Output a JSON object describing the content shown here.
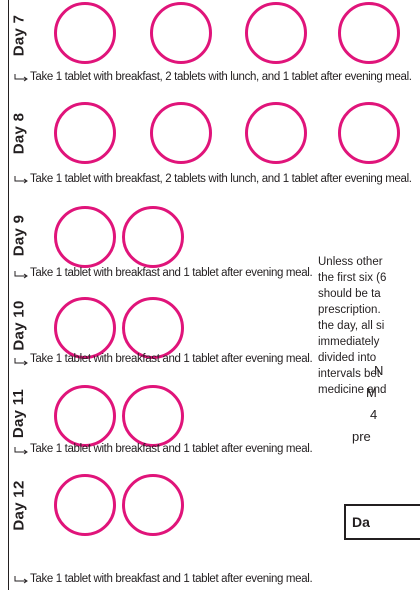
{
  "days": [
    {
      "label": "Day 7",
      "tablets": 4,
      "instruction": "Take 1 tablet with breakfast, 2 tablets with lunch, and 1 tablet after evening meal."
    },
    {
      "label": "Day 8",
      "tablets": 4,
      "instruction": "Take 1 tablet with breakfast, 2 tablets with lunch, and 1 tablet after evening meal."
    },
    {
      "label": "Day 9",
      "tablets": 2,
      "instruction": "Take 1 tablet with breakfast and 1 tablet after evening meal."
    },
    {
      "label": "Day 10",
      "tablets": 2,
      "instruction": "Take 1 tablet with breakfast and 1 tablet after evening meal."
    },
    {
      "label": "Day 11",
      "tablets": 2,
      "instruction": "Take 1 tablet with breakfast and 1 tablet after evening meal."
    },
    {
      "label": "Day 12",
      "tablets": 2,
      "instruction": "Take 1 tablet with breakfast and 1 tablet after evening meal."
    }
  ],
  "side_note": {
    "lines": [
      "Unless other",
      "the first six (6",
      "should be ta",
      "prescription.",
      "the day, all si",
      "immediately",
      "divided into",
      "intervals bet",
      "medicine and"
    ]
  },
  "side_note2": {
    "lines": [
      "N",
      "M",
      "4",
      "pre"
    ]
  },
  "da_box": {
    "label": "Da"
  },
  "colors": {
    "circle": "#e0147a",
    "text": "#231f20"
  }
}
